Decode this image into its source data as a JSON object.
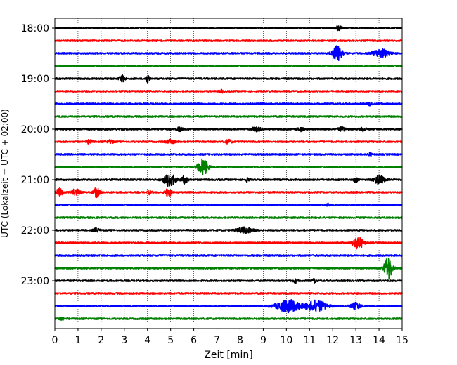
{
  "chart_data": {
    "type": "line",
    "title": "",
    "xlabel": "Zeit  [min]",
    "ylabel": "UTC (Lokalzeit = UTC + 02:00)",
    "xlim": [
      0,
      15
    ],
    "x_ticks": [
      0,
      1,
      2,
      3,
      4,
      5,
      6,
      7,
      8,
      9,
      10,
      11,
      12,
      13,
      14,
      15
    ],
    "x_tick_labels": [
      "0",
      "1",
      "2",
      "3",
      "4",
      "5",
      "6",
      "7",
      "8",
      "9",
      "10",
      "11",
      "12",
      "13",
      "14",
      "15"
    ],
    "y_tick_labels": [
      "18:00",
      "19:00",
      "20:00",
      "21:00",
      "22:00",
      "23:00"
    ],
    "y_tick_rows": [
      0,
      4,
      8,
      12,
      16,
      20
    ],
    "grid": "vertical dotted",
    "color_cycle": [
      "#000000",
      "#ff0000",
      "#0000ff",
      "#008000"
    ],
    "traces": [
      {
        "start": "18:00",
        "color": "#000000",
        "events": [
          {
            "t": 12.25,
            "amp": 0.25,
            "dur": 0.3
          }
        ]
      },
      {
        "start": "18:15",
        "color": "#ff0000",
        "events": []
      },
      {
        "start": "18:30",
        "color": "#0000ff",
        "events": [
          {
            "t": 12.2,
            "amp": 0.8,
            "dur": 0.5
          },
          {
            "t": 14.1,
            "amp": 0.45,
            "dur": 0.8
          }
        ]
      },
      {
        "start": "18:45",
        "color": "#008000",
        "events": []
      },
      {
        "start": "19:00",
        "color": "#000000",
        "events": [
          {
            "t": 2.9,
            "amp": 0.35,
            "dur": 0.3
          },
          {
            "t": 4.0,
            "amp": 0.5,
            "dur": 0.2
          }
        ]
      },
      {
        "start": "19:15",
        "color": "#ff0000",
        "events": [
          {
            "t": 7.2,
            "amp": 0.15,
            "dur": 0.2
          }
        ]
      },
      {
        "start": "19:30",
        "color": "#0000ff",
        "events": [
          {
            "t": 9.0,
            "amp": 0.15,
            "dur": 0.2
          },
          {
            "t": 13.6,
            "amp": 0.15,
            "dur": 0.2
          }
        ]
      },
      {
        "start": "19:45",
        "color": "#008000",
        "events": []
      },
      {
        "start": "20:00",
        "color": "#000000",
        "events": [
          {
            "t": 5.4,
            "amp": 0.2,
            "dur": 0.3
          },
          {
            "t": 8.7,
            "amp": 0.2,
            "dur": 0.5
          },
          {
            "t": 10.6,
            "amp": 0.2,
            "dur": 0.3
          },
          {
            "t": 12.4,
            "amp": 0.2,
            "dur": 0.4
          },
          {
            "t": 13.3,
            "amp": 0.2,
            "dur": 0.3
          }
        ]
      },
      {
        "start": "20:15",
        "color": "#ff0000",
        "events": [
          {
            "t": 1.5,
            "amp": 0.2,
            "dur": 0.3
          },
          {
            "t": 2.4,
            "amp": 0.2,
            "dur": 0.3
          },
          {
            "t": 5.0,
            "amp": 0.2,
            "dur": 0.4
          },
          {
            "t": 7.5,
            "amp": 0.2,
            "dur": 0.3
          }
        ]
      },
      {
        "start": "20:30",
        "color": "#0000ff",
        "events": [
          {
            "t": 13.6,
            "amp": 0.15,
            "dur": 0.2
          }
        ]
      },
      {
        "start": "20:45",
        "color": "#008000",
        "events": [
          {
            "t": 6.4,
            "amp": 0.9,
            "dur": 0.5
          }
        ]
      },
      {
        "start": "21:00",
        "color": "#000000",
        "events": [
          {
            "t": 4.95,
            "amp": 0.7,
            "dur": 0.6
          },
          {
            "t": 5.6,
            "amp": 0.4,
            "dur": 0.3
          },
          {
            "t": 8.3,
            "amp": 0.2,
            "dur": 0.2
          },
          {
            "t": 13.0,
            "amp": 0.3,
            "dur": 0.2
          },
          {
            "t": 14.0,
            "amp": 0.5,
            "dur": 0.5
          }
        ]
      },
      {
        "start": "21:15",
        "color": "#ff0000",
        "events": [
          {
            "t": 0.2,
            "amp": 0.45,
            "dur": 0.3
          },
          {
            "t": 0.9,
            "amp": 0.35,
            "dur": 0.4
          },
          {
            "t": 1.8,
            "amp": 0.5,
            "dur": 0.3
          },
          {
            "t": 4.9,
            "amp": 0.45,
            "dur": 0.3
          },
          {
            "t": 4.1,
            "amp": 0.2,
            "dur": 0.2
          }
        ]
      },
      {
        "start": "21:30",
        "color": "#0000ff",
        "events": [
          {
            "t": 11.8,
            "amp": 0.15,
            "dur": 0.2
          }
        ]
      },
      {
        "start": "21:45",
        "color": "#008000",
        "events": []
      },
      {
        "start": "22:00",
        "color": "#000000",
        "events": [
          {
            "t": 1.8,
            "amp": 0.2,
            "dur": 0.3
          },
          {
            "t": 8.2,
            "amp": 0.3,
            "dur": 0.8
          }
        ]
      },
      {
        "start": "22:15",
        "color": "#ff0000",
        "events": [
          {
            "t": 13.1,
            "amp": 0.7,
            "dur": 0.5
          }
        ]
      },
      {
        "start": "22:30",
        "color": "#0000ff",
        "events": []
      },
      {
        "start": "22:45",
        "color": "#008000",
        "events": [
          {
            "t": 14.4,
            "amp": 1.3,
            "dur": 0.4
          }
        ]
      },
      {
        "start": "23:00",
        "color": "#000000",
        "events": [
          {
            "t": 10.4,
            "amp": 0.2,
            "dur": 0.2
          },
          {
            "t": 11.2,
            "amp": 0.2,
            "dur": 0.2
          }
        ]
      },
      {
        "start": "23:15",
        "color": "#ff0000",
        "events": []
      },
      {
        "start": "23:30",
        "color": "#0000ff",
        "events": [
          {
            "t": 10.1,
            "amp": 0.65,
            "dur": 1.2
          },
          {
            "t": 11.3,
            "amp": 0.6,
            "dur": 1.0
          },
          {
            "t": 13.0,
            "amp": 0.35,
            "dur": 0.5
          }
        ]
      },
      {
        "start": "23:45",
        "color": "#008000",
        "events": [
          {
            "t": 0.3,
            "amp": 0.15,
            "dur": 0.2
          }
        ]
      }
    ]
  }
}
